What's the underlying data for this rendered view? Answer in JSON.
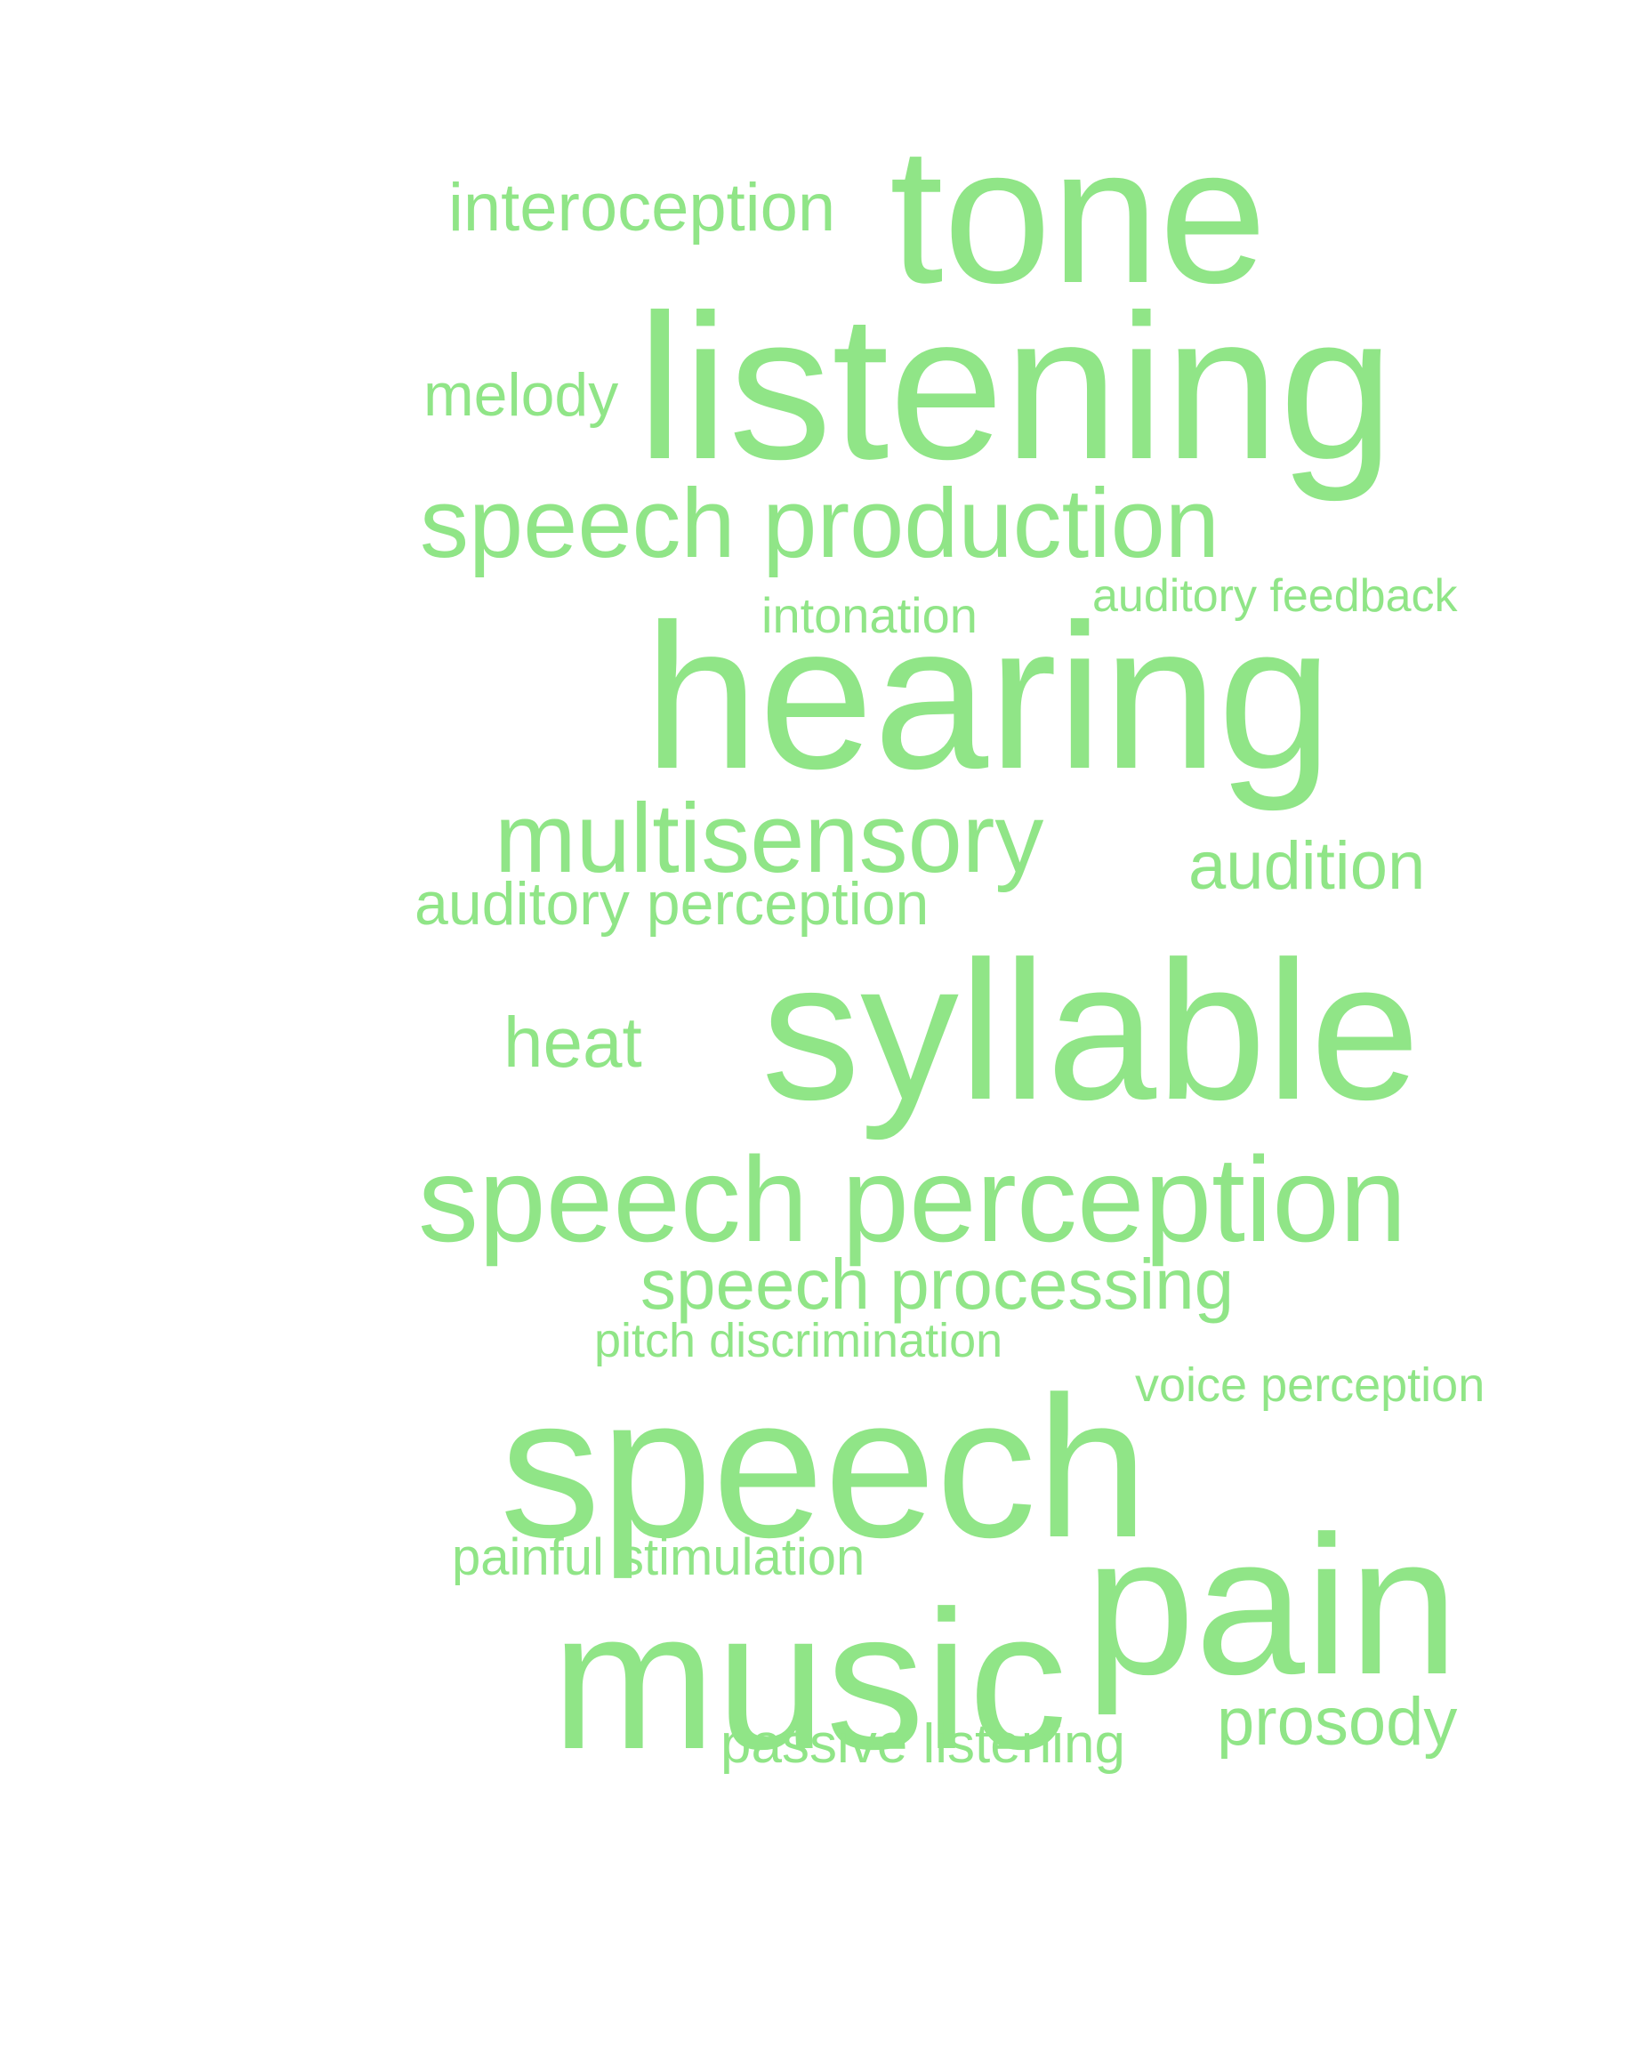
{
  "word_cloud": {
    "color": "#90e587",
    "words": [
      {
        "text": "interoception",
        "weight": 0.28
      },
      {
        "text": "tone",
        "weight": 0.72
      },
      {
        "text": "melody",
        "weight": 0.25
      },
      {
        "text": "listening",
        "weight": 0.85
      },
      {
        "text": "speech production",
        "weight": 0.55
      },
      {
        "text": "intonation",
        "weight": 0.2
      },
      {
        "text": "auditory feedback",
        "weight": 0.18
      },
      {
        "text": "hearing",
        "weight": 0.88
      },
      {
        "text": "multisensory",
        "weight": 0.5
      },
      {
        "text": "audition",
        "weight": 0.32
      },
      {
        "text": "auditory perception",
        "weight": 0.32
      },
      {
        "text": "heat",
        "weight": 0.3
      },
      {
        "text": "syllable",
        "weight": 0.82
      },
      {
        "text": "speech perception",
        "weight": 0.62
      },
      {
        "text": "speech processing",
        "weight": 0.37
      },
      {
        "text": "pitch discrimination",
        "weight": 0.18
      },
      {
        "text": "voice perception",
        "weight": 0.18
      },
      {
        "text": "speech",
        "weight": 0.86
      },
      {
        "text": "painful stimulation",
        "weight": 0.2
      },
      {
        "text": "pain",
        "weight": 0.75
      },
      {
        "text": "music",
        "weight": 0.85
      },
      {
        "text": "prosody",
        "weight": 0.32
      },
      {
        "text": "passive listening",
        "weight": 0.22
      }
    ]
  }
}
